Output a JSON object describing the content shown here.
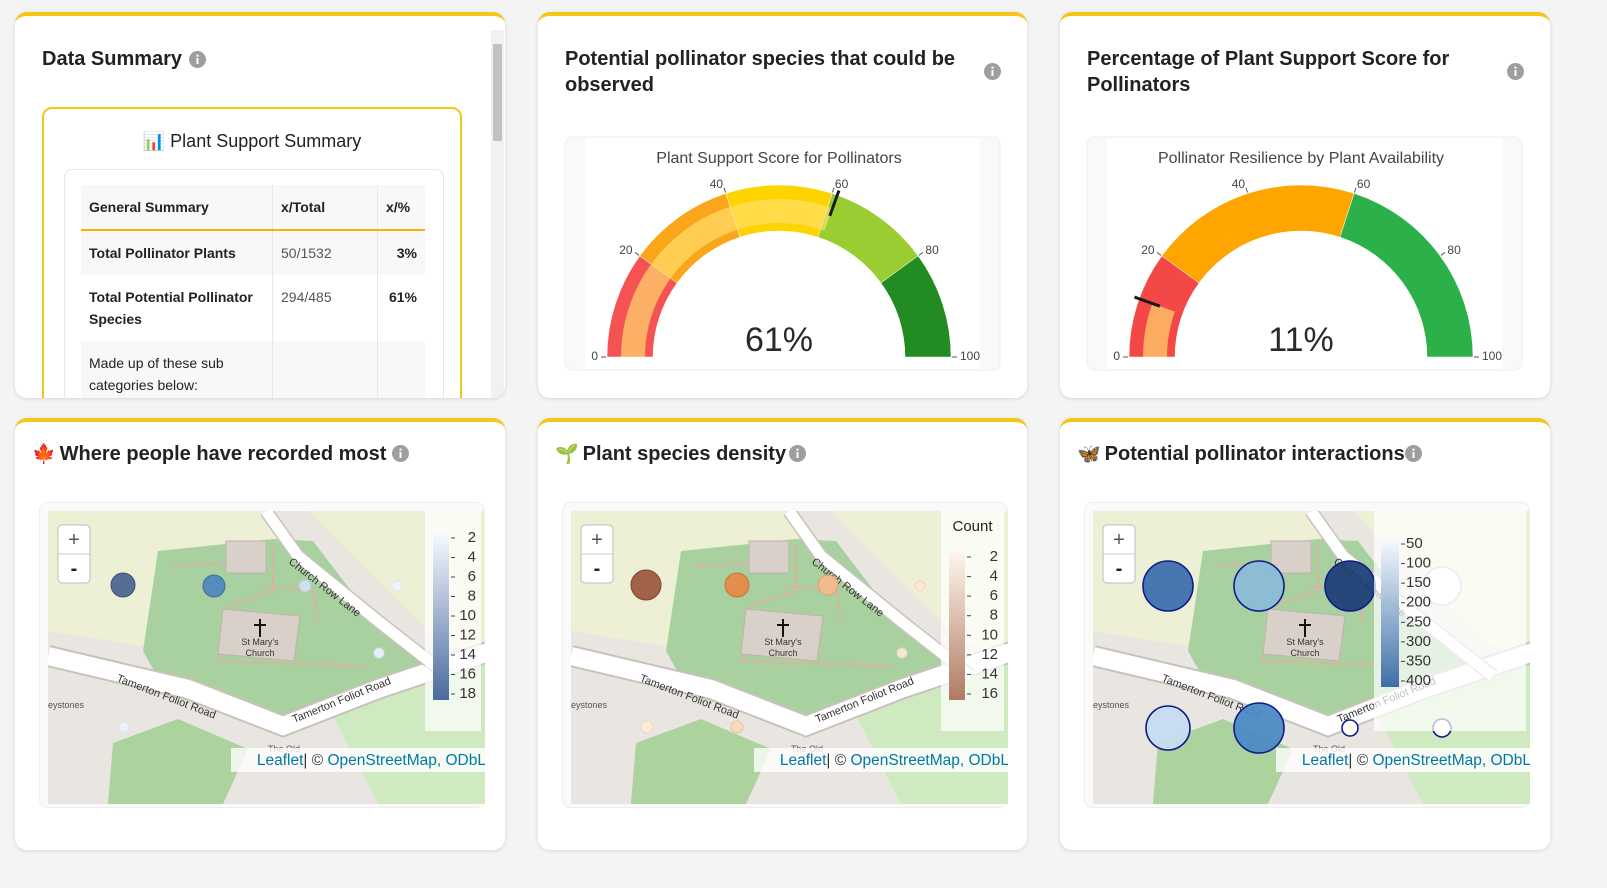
{
  "summary": {
    "title": "Data Summary",
    "card_icon": "📊",
    "card_title": "Plant Support Summary",
    "table": {
      "header": [
        "General Summary",
        "x/Total",
        "x/%"
      ],
      "rows": [
        [
          "Total Pollinator Plants",
          "50/1532",
          "3%"
        ],
        [
          "Total Potential Pollinator Species",
          "294/485",
          "61%"
        ],
        [
          "Made up of these sub categories below:"
        ]
      ]
    }
  },
  "gauges": [
    {
      "title": "Potential pollinator species that could be observed",
      "chart_title": "Plant Support Score for Pollinators",
      "value": 61,
      "value_label": "61%",
      "range": [
        0,
        100
      ],
      "ticks": [
        0,
        20,
        40,
        60,
        80,
        100
      ],
      "steps": [
        {
          "range": [
            0,
            20
          ],
          "color": "#f55353"
        },
        {
          "range": [
            20,
            40
          ],
          "color": "#fba51a"
        },
        {
          "range": [
            40,
            60
          ],
          "color": "#fdd400"
        },
        {
          "range": [
            60,
            80
          ],
          "color": "#9acd32"
        },
        {
          "range": [
            80,
            100
          ],
          "color": "#228b22"
        }
      ],
      "bar_color": "rgba(255,226,110,0.65)",
      "threshold_color": "#1a1a1a"
    },
    {
      "title": "Percentage of Plant Support Score for Pollinators",
      "chart_title": "Pollinator Resilience by Plant Availability",
      "value": 11,
      "value_label": "11%",
      "range": [
        0,
        100
      ],
      "ticks": [
        0,
        20,
        40,
        60,
        80,
        100
      ],
      "steps": [
        {
          "range": [
            0,
            20
          ],
          "color": "#f44848"
        },
        {
          "range": [
            20,
            60
          ],
          "color": "#fea500"
        },
        {
          "range": [
            60,
            100
          ],
          "color": "#2bb04a"
        }
      ],
      "bar_color": "rgba(255,226,110,0.65)",
      "threshold_color": "#1a1a1a"
    }
  ],
  "maps": [
    {
      "icon": "🍁",
      "title": "Where people have recorded most",
      "colorbar": {
        "ticks": [
          2,
          4,
          6,
          8,
          10,
          12,
          14,
          16,
          18
        ],
        "colors": [
          "#f7fbff",
          "#4a6b9e"
        ]
      }
    },
    {
      "icon": "🌱",
      "title": "Plant species density",
      "colorbar": {
        "title": "Count",
        "ticks": [
          2,
          4,
          6,
          8,
          10,
          12,
          14,
          16
        ],
        "colors": [
          "#fff7ee",
          "#b07a62"
        ]
      }
    },
    {
      "icon": "🦋",
      "title": "Potential pollinator interactions",
      "colorbar": {
        "ticks": [
          50,
          100,
          150,
          200,
          250,
          300,
          350,
          400
        ],
        "colors": [
          "#f7fbff",
          "#3e6fa8"
        ]
      }
    }
  ],
  "map_text": {
    "zoom_in": "+",
    "zoom_out": "-",
    "lane": "Church Row Lane",
    "road": "Tamerton Foliot Road",
    "church": [
      "St Mary's",
      "Church"
    ],
    "place": "eystones",
    "old": "The Old",
    "attribution": [
      "Leaflet",
      "| © ",
      "OpenStreetMap, ODbL"
    ]
  }
}
